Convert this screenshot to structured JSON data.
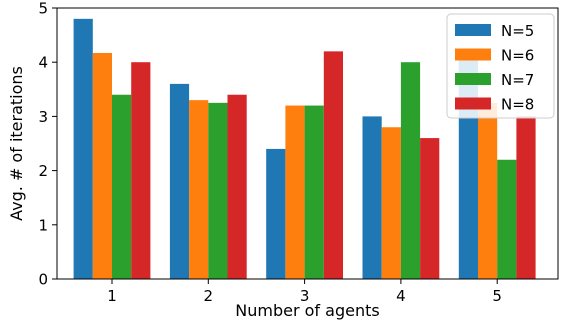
{
  "chart_data": {
    "type": "bar",
    "xlabel": "Number of agents",
    "ylabel": "Avg. # of iterations",
    "categories": [
      "1",
      "2",
      "3",
      "4",
      "5"
    ],
    "ylim": [
      0,
      5
    ],
    "yticks": [
      "0",
      "1",
      "2",
      "3",
      "4",
      "5"
    ],
    "grid": false,
    "legend_position": "top-right",
    "series": [
      {
        "name": "N=5",
        "color": "#1f77b4",
        "values": [
          4.8,
          3.6,
          2.4,
          3.0,
          4.1
        ]
      },
      {
        "name": "N=6",
        "color": "#ff7f0e",
        "values": [
          4.17,
          3.3,
          3.2,
          2.8,
          3.25
        ]
      },
      {
        "name": "N=7",
        "color": "#2ca02c",
        "values": [
          3.4,
          3.25,
          3.2,
          4.0,
          2.2
        ]
      },
      {
        "name": "N=8",
        "color": "#d62728",
        "values": [
          4.0,
          3.4,
          4.2,
          2.6,
          3.0
        ]
      }
    ]
  }
}
